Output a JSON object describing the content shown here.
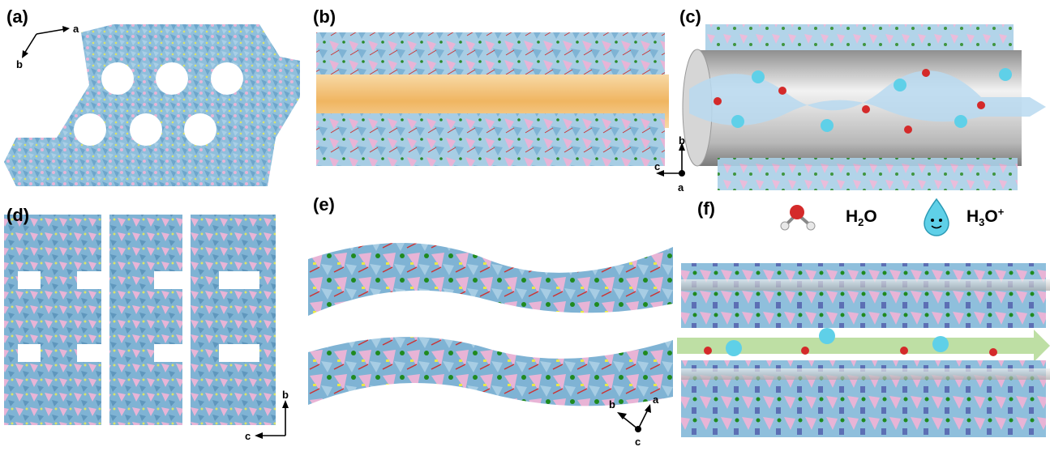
{
  "panels": {
    "a": {
      "label": "(a)",
      "axes": {
        "x": "a",
        "y": "b"
      }
    },
    "b": {
      "label": "(b)"
    },
    "c": {
      "label": "(c)"
    },
    "bc_axes": {
      "up": "b",
      "left": "c",
      "origin": "a"
    },
    "d": {
      "label": "(d)",
      "axes": {
        "up": "b",
        "left": "c"
      }
    },
    "e": {
      "label": "(e)",
      "axes": {
        "left": "b",
        "right": "a",
        "origin": "c"
      }
    },
    "f": {
      "label": "(f)"
    }
  },
  "legend": {
    "water": {
      "formula_main": "H",
      "formula_sub": "2",
      "formula_end": "O"
    },
    "hydronium": {
      "formula_main": "H",
      "formula_sub": "3",
      "formula_end": "O",
      "formula_sup": "+"
    }
  },
  "colors": {
    "polyhedra_blue": "#8fbfdc",
    "polyhedra_pink": "#e8b4d6",
    "channel_orange": "#f4c07a",
    "tube_gray": "#c8c8c8",
    "water_flow": "#b8d9f0",
    "proton_arrow": "#b7dc9a",
    "droplet": "#5fd0e8"
  }
}
